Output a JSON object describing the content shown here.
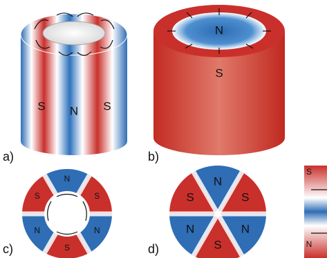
{
  "panels": [
    {
      "label": "a)",
      "poles": [
        "S",
        "N",
        "S"
      ]
    },
    {
      "label": "b)",
      "poles": [
        "N",
        "S"
      ]
    },
    {
      "label": "c)",
      "poles": [
        "N",
        "S",
        "S",
        "N",
        "N",
        "S"
      ]
    },
    {
      "label": "d)",
      "poles": [
        "N",
        "S",
        "S",
        "N",
        "N",
        "S"
      ]
    },
    {
      "poles": [
        "S",
        "N"
      ]
    }
  ]
}
